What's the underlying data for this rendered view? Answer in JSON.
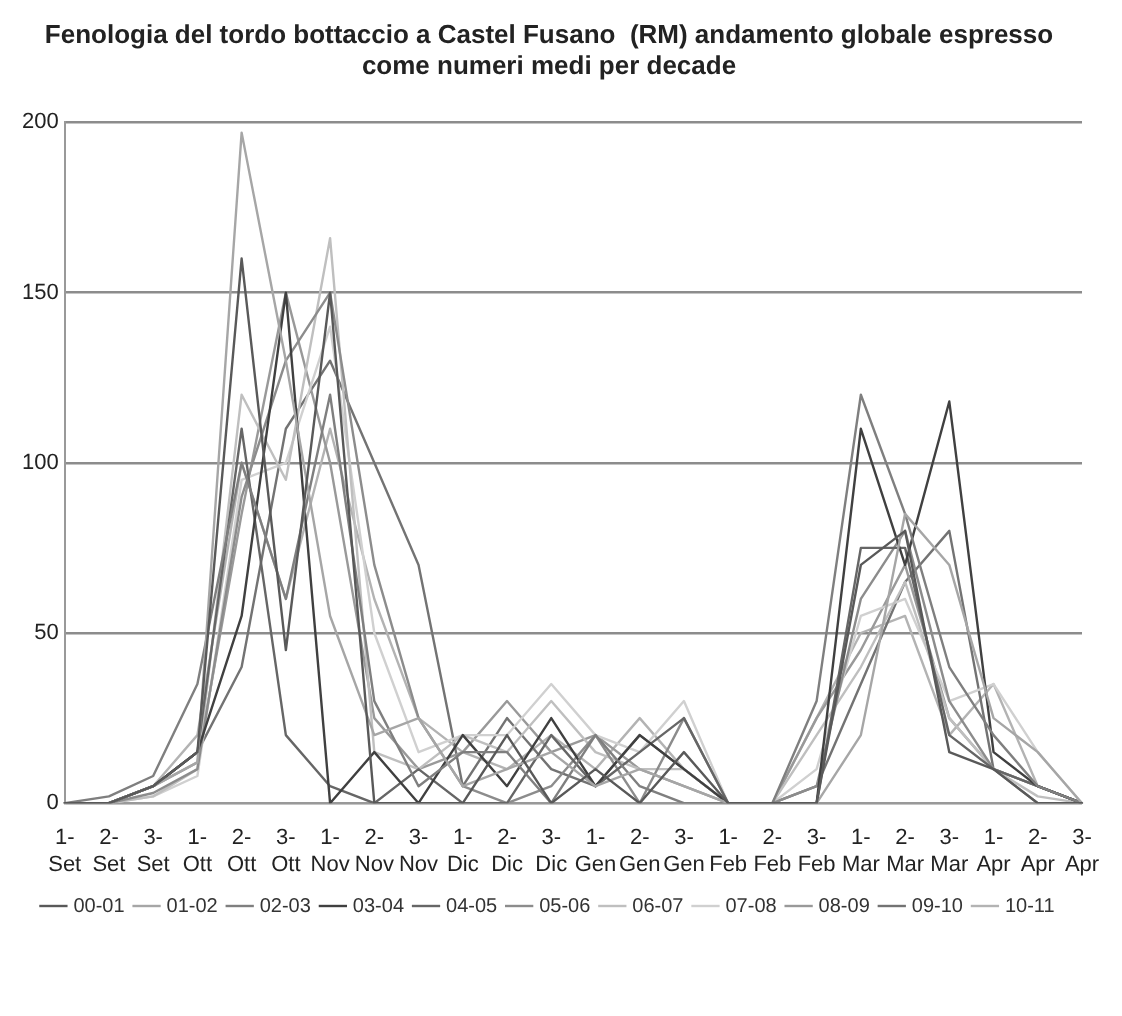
{
  "chart_data": {
    "type": "line",
    "title": [
      "Fenologia del tordo bottaccio a Castel Fusano  (RM) andamento globale espresso",
      "come numeri medi per decade"
    ],
    "categories": [
      "1-Set",
      "2-Set",
      "3-Set",
      "1-Ott",
      "2-Ott",
      "3-Ott",
      "1-Nov",
      "2-Nov",
      "3-Nov",
      "1-Dic",
      "2-Dic",
      "3-Dic",
      "1-Gen",
      "2-Gen",
      "3-Gen",
      "1-Feb",
      "2-Feb",
      "3-Feb",
      "1-Mar",
      "2-Mar",
      "3-Mar",
      "1-Apr",
      "2-Apr",
      "3-Apr"
    ],
    "ylim": [
      0,
      200
    ],
    "yticks": [
      0,
      50,
      100,
      150,
      200
    ],
    "grid": "y",
    "legend": "bottom",
    "marker": "none",
    "line_style": "solid",
    "series": [
      {
        "name": "00-01",
        "color": "#595959",
        "values": [
          0,
          0,
          5,
          15,
          160,
          45,
          150,
          0,
          0,
          0,
          20,
          0,
          10,
          0,
          15,
          0,
          0,
          0,
          70,
          80,
          15,
          10,
          0,
          0
        ]
      },
      {
        "name": "01-02",
        "color": "#a6a6a6",
        "values": [
          0,
          0,
          5,
          12,
          197,
          130,
          55,
          20,
          25,
          5,
          10,
          15,
          5,
          10,
          5,
          0,
          0,
          0,
          20,
          85,
          70,
          25,
          15,
          0
        ]
      },
      {
        "name": "02-03",
        "color": "#7f7f7f",
        "values": [
          0,
          2,
          8,
          35,
          100,
          60,
          120,
          30,
          5,
          15,
          15,
          0,
          20,
          5,
          0,
          0,
          0,
          30,
          120,
          85,
          40,
          20,
          5,
          0
        ]
      },
      {
        "name": "03-04",
        "color": "#404040",
        "values": [
          0,
          0,
          5,
          15,
          55,
          150,
          0,
          15,
          0,
          20,
          5,
          25,
          5,
          20,
          10,
          0,
          0,
          0,
          110,
          70,
          118,
          15,
          5,
          0
        ]
      },
      {
        "name": "04-05",
        "color": "#666666",
        "values": [
          0,
          0,
          5,
          15,
          110,
          20,
          5,
          0,
          10,
          0,
          0,
          20,
          5,
          15,
          25,
          0,
          0,
          0,
          75,
          75,
          20,
          10,
          5,
          0
        ]
      },
      {
        "name": "05-06",
        "color": "#8c8c8c",
        "values": [
          0,
          0,
          3,
          10,
          90,
          130,
          150,
          70,
          25,
          5,
          0,
          5,
          20,
          0,
          25,
          0,
          0,
          5,
          60,
          80,
          30,
          10,
          0,
          0
        ]
      },
      {
        "name": "06-07",
        "color": "#bfbfbf",
        "values": [
          0,
          0,
          2,
          10,
          120,
          95,
          166,
          15,
          10,
          20,
          15,
          30,
          15,
          10,
          10,
          0,
          0,
          20,
          40,
          65,
          25,
          10,
          2,
          0
        ]
      },
      {
        "name": "07-08",
        "color": "#d0d0d0",
        "values": [
          0,
          0,
          2,
          8,
          95,
          100,
          140,
          50,
          15,
          20,
          20,
          35,
          20,
          15,
          30,
          0,
          0,
          10,
          55,
          60,
          30,
          35,
          15,
          0
        ]
      },
      {
        "name": "08-09",
        "color": "#999999",
        "values": [
          0,
          0,
          5,
          12,
          85,
          150,
          100,
          25,
          10,
          15,
          30,
          15,
          20,
          10,
          5,
          0,
          0,
          25,
          45,
          70,
          25,
          10,
          5,
          0
        ]
      },
      {
        "name": "09-10",
        "color": "#737373",
        "values": [
          0,
          0,
          5,
          15,
          40,
          110,
          130,
          100,
          70,
          5,
          25,
          10,
          5,
          20,
          10,
          0,
          0,
          5,
          35,
          65,
          80,
          10,
          5,
          0
        ]
      },
      {
        "name": "10-11",
        "color": "#b3b3b3",
        "values": [
          0,
          0,
          5,
          20,
          100,
          60,
          110,
          60,
          25,
          15,
          10,
          20,
          10,
          25,
          10,
          0,
          0,
          25,
          50,
          55,
          20,
          35,
          5,
          0
        ]
      }
    ]
  }
}
